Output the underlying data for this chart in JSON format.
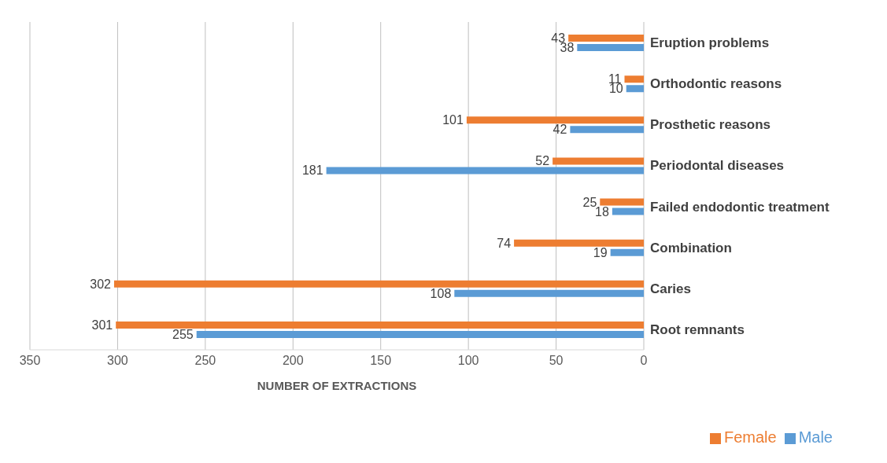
{
  "chart_data": {
    "type": "bar",
    "orientation": "horizontal",
    "xlabel": "NUMBER OF EXTRACTIONS",
    "categories": [
      "Eruption problems",
      "Orthodontic reasons",
      "Prosthetic reasons",
      "Periodontal diseases",
      "Failed endodontic treatment",
      "Combination",
      "Caries",
      "Root remnants"
    ],
    "series": [
      {
        "name": "Female",
        "color": "#ed7d31",
        "values": [
          43,
          11,
          101,
          52,
          25,
          74,
          302,
          301
        ]
      },
      {
        "name": "Male",
        "color": "#5b9bd5",
        "values": [
          38,
          10,
          42,
          181,
          18,
          19,
          108,
          255
        ]
      }
    ],
    "xlim": [
      350,
      0
    ],
    "xticks": [
      350,
      300,
      250,
      200,
      150,
      100,
      50,
      0
    ],
    "grid": "x",
    "legend": "bottom right",
    "data_labels": true
  }
}
